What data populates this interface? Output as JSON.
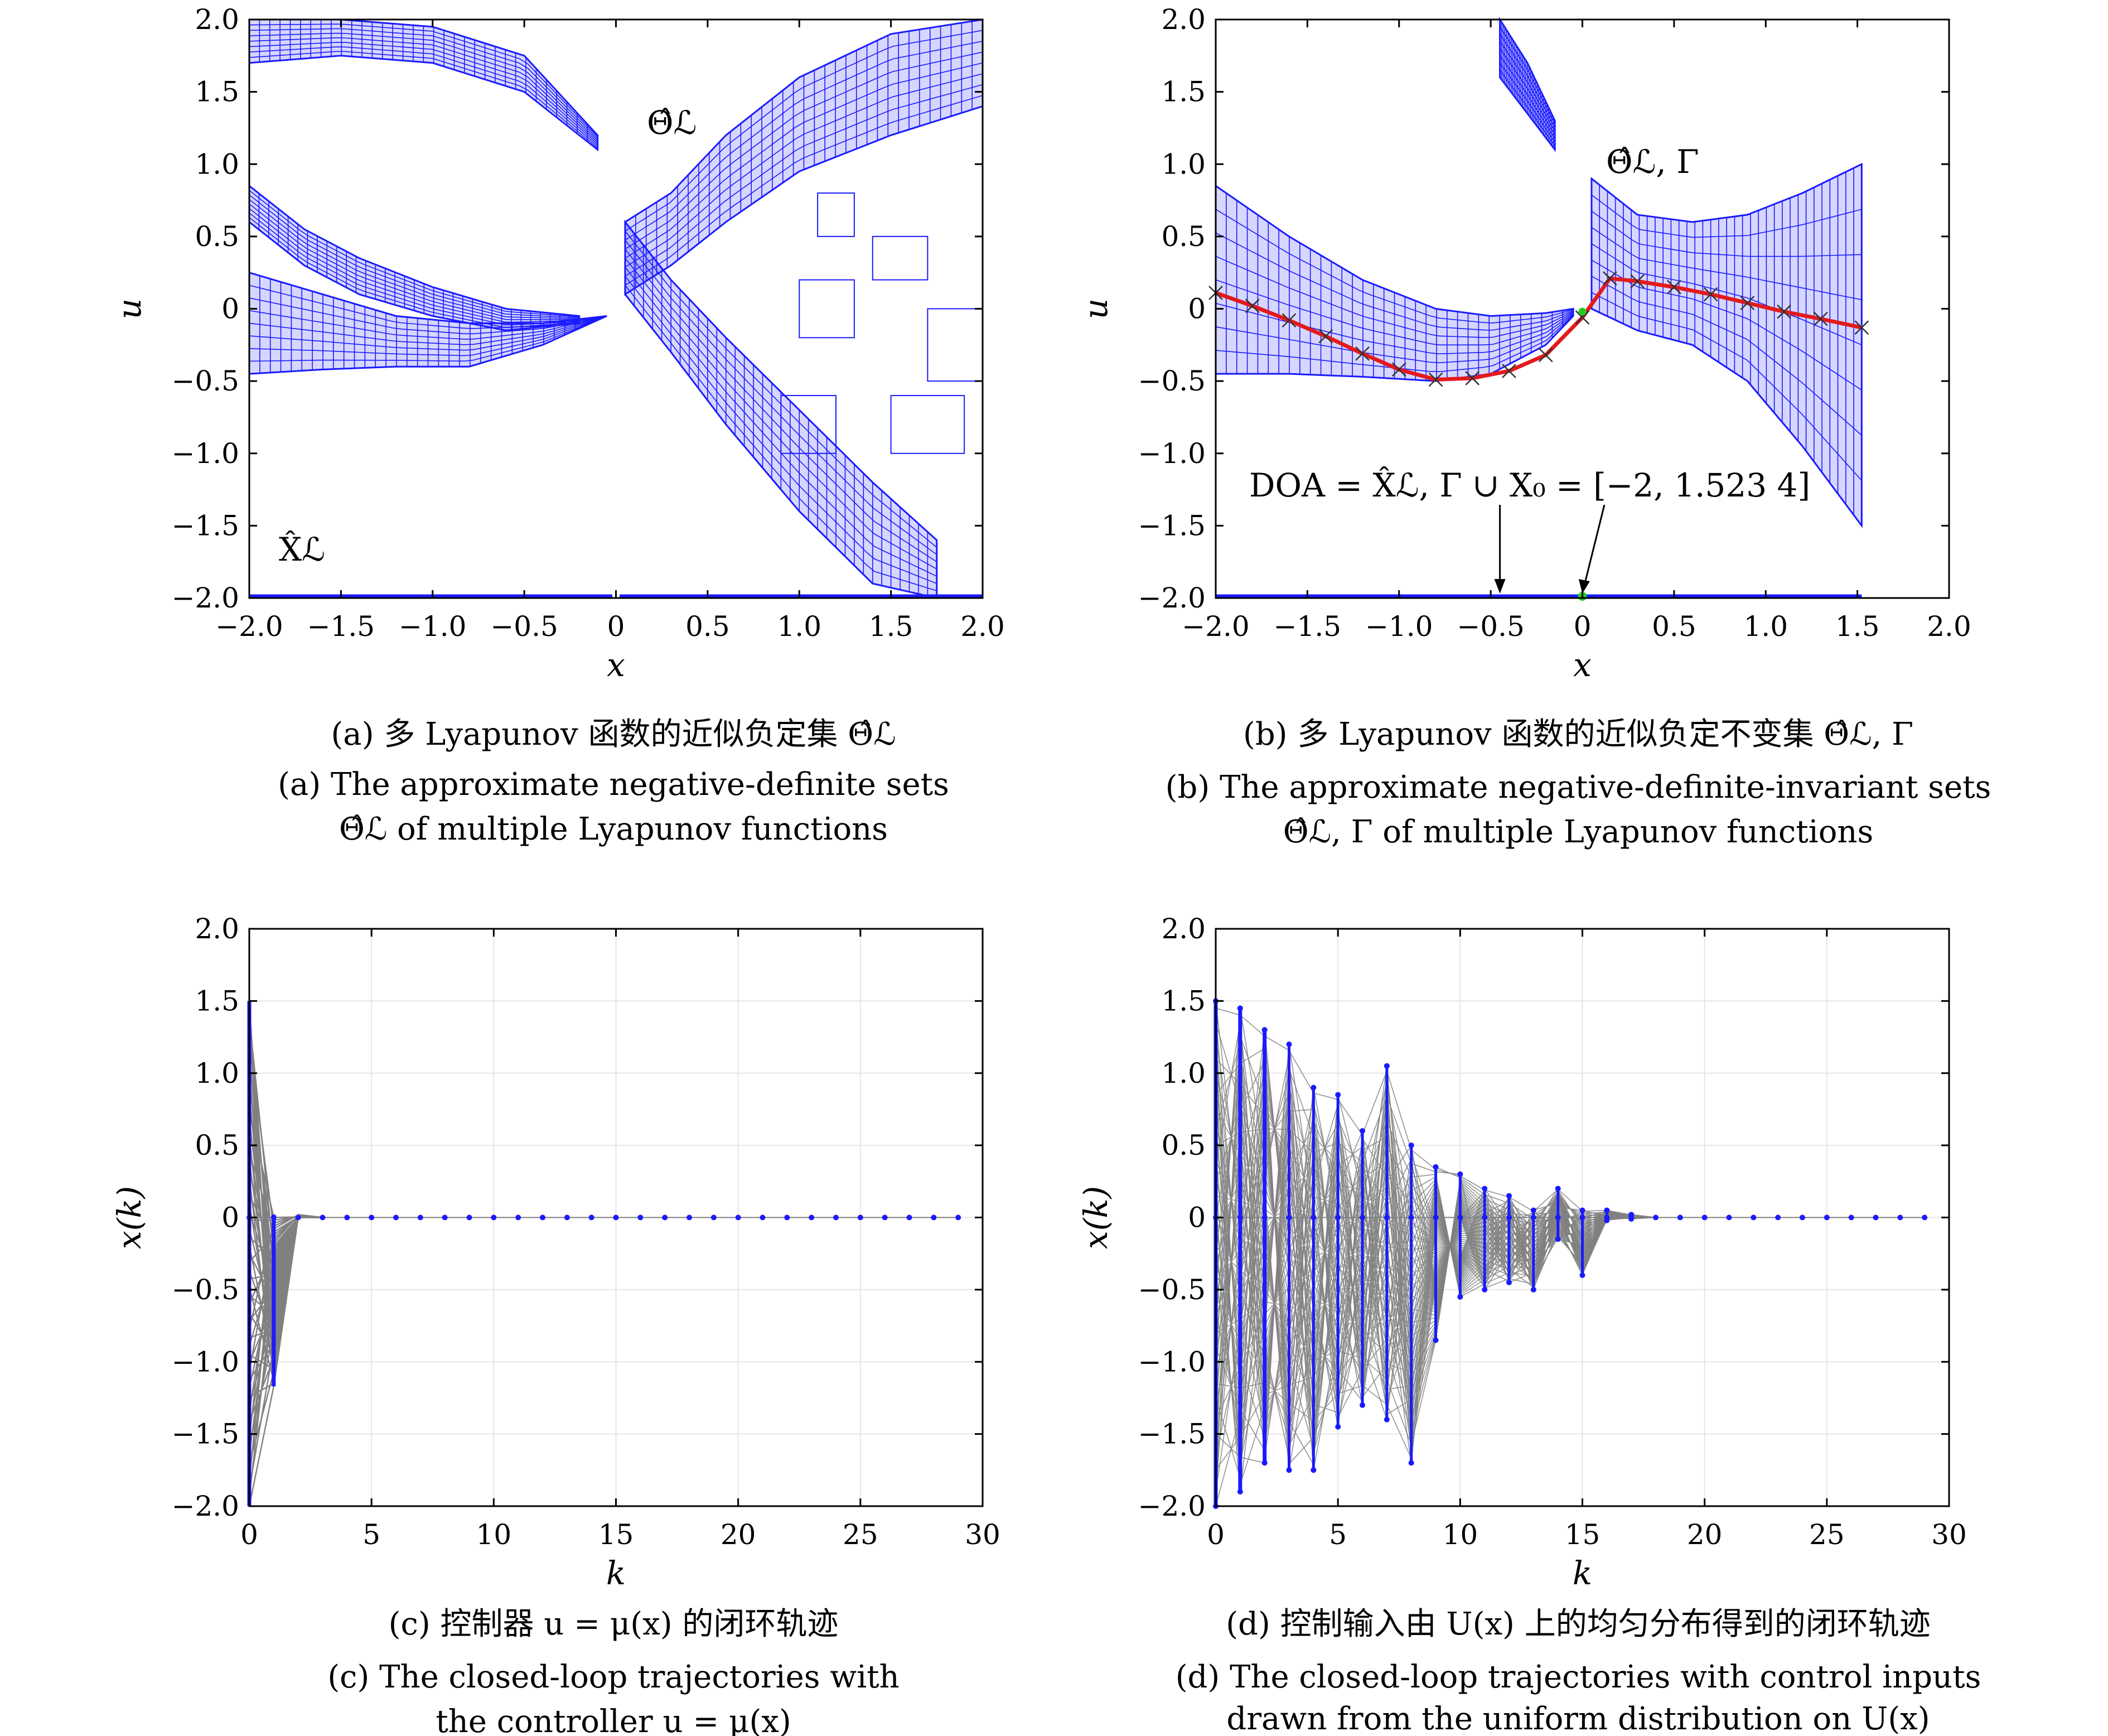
{
  "colors": {
    "blue": "#1a1aff",
    "red": "#e31a1c",
    "gray": "#808080",
    "green": "#22cc22",
    "black": "#000000"
  },
  "captions": {
    "a": {
      "cn": "(a) 多 Lyapunov 函数的近似负定集 Θ̂ℒ",
      "en1": "(a) The approximate negative-definite sets",
      "en2": "Θ̂ℒ of multiple Lyapunov functions"
    },
    "b": {
      "cn": "(b) 多 Lyapunov 函数的近似负定不变集 Θ̂ℒ, Γ",
      "en1": "(b) The approximate negative-definite-invariant sets",
      "en2": "Θ̂ℒ, Γ of multiple Lyapunov functions"
    },
    "c": {
      "cn": "(c) 控制器 u = μ(x) 的闭环轨迹",
      "en1": "(c) The closed-loop trajectories with",
      "en2": "the controller u = μ(x)"
    },
    "d": {
      "cn": "(d) 控制输入由 U(x) 上的均匀分布得到的闭环轨迹",
      "en1": "(d) The closed-loop trajectories with control inputs",
      "en2": "drawn from the uniform distribution on U(x)"
    }
  },
  "annotations": {
    "theta_a": "Θ̂ℒ",
    "x_a": "X̂ℒ",
    "theta_b": "Θ̂ℒ, Γ",
    "doa": "DOA = X̂ℒ, Γ ∪ X₀ = [−2, 1.523 4]"
  },
  "chart_data": [
    {
      "panel": "a",
      "type": "scatter",
      "xlabel": "x",
      "ylabel": "u",
      "xlim": [
        -2,
        2
      ],
      "ylim": [
        -2,
        2
      ],
      "xticks": [
        "−2.0",
        "−1.5",
        "−1.0",
        "−0.5",
        "0",
        "0.5",
        "1.0",
        "1.5",
        "2.0"
      ],
      "xtick_values": [
        -2,
        -1.5,
        -1,
        -0.5,
        0,
        0.5,
        1,
        1.5,
        2
      ],
      "yticks": [
        "2.0",
        "1.5",
        "1.0",
        "0.5",
        "0",
        "−0.5",
        "−1.0",
        "−1.5",
        "−2.0"
      ],
      "ytick_values": [
        2,
        1.5,
        1,
        0.5,
        0,
        -0.5,
        -1,
        -1.5,
        -2
      ],
      "series": [
        {
          "name": "Θ̂ℒ",
          "description_color": "blue"
        },
        {
          "name": "X̂ℒ",
          "x_range": [
            -2,
            2
          ],
          "y": -2
        }
      ],
      "bands": [
        {
          "x": [
            -2,
            -1.6,
            -1.2,
            -0.8,
            -0.4,
            -0.05
          ],
          "y_lower": [
            -0.45,
            -0.42,
            -0.4,
            -0.4,
            -0.25,
            -0.05
          ],
          "y_upper": [
            0.25,
            0.1,
            -0.05,
            -0.1,
            -0.1,
            -0.05
          ]
        },
        {
          "x": [
            -2,
            -1.7,
            -1.4,
            -1.0,
            -0.6,
            -0.2
          ],
          "y_lower": [
            0.6,
            0.3,
            0.1,
            -0.05,
            -0.15,
            -0.1
          ],
          "y_upper": [
            0.85,
            0.55,
            0.35,
            0.15,
            0,
            -0.05
          ]
        },
        {
          "x": [
            -2,
            -1.5,
            -1.0,
            -0.5,
            -0.1
          ],
          "y_lower": [
            1.7,
            1.75,
            1.7,
            1.5,
            1.1
          ],
          "y_upper": [
            2.0,
            2.0,
            1.95,
            1.75,
            1.2
          ]
        },
        {
          "x": [
            0.05,
            0.3,
            0.6,
            1.0,
            1.5,
            2.0
          ],
          "y_lower": [
            0.1,
            0.3,
            0.6,
            0.95,
            1.2,
            1.4
          ],
          "y_upper": [
            0.6,
            0.8,
            1.2,
            1.6,
            1.9,
            2.0
          ]
        },
        {
          "x": [
            0.05,
            0.3,
            0.6,
            1.0,
            1.4,
            1.75
          ],
          "y_lower": [
            0.1,
            -0.3,
            -0.8,
            -1.4,
            -1.9,
            -2.0
          ],
          "y_upper": [
            0.6,
            0.2,
            -0.2,
            -0.7,
            -1.2,
            -1.6
          ]
        }
      ]
    },
    {
      "panel": "b",
      "type": "scatter",
      "xlabel": "x",
      "ylabel": "u",
      "xlim": [
        -2,
        2
      ],
      "ylim": [
        -2,
        2
      ],
      "xticks": [
        "−2.0",
        "−1.5",
        "−1.0",
        "−0.5",
        "0",
        "0.5",
        "1.0",
        "1.5",
        "2.0"
      ],
      "xtick_values": [
        -2,
        -1.5,
        -1,
        -0.5,
        0,
        0.5,
        1,
        1.5,
        2
      ],
      "yticks": [
        "2.0",
        "1.5",
        "1.0",
        "0.5",
        "0",
        "−0.5",
        "−1.0",
        "−1.5",
        "−2.0"
      ],
      "ytick_values": [
        2,
        1.5,
        1,
        0.5,
        0,
        -0.5,
        -1,
        -1.5,
        -2
      ],
      "controller": {
        "x": [
          -2.0,
          -1.8,
          -1.6,
          -1.4,
          -1.2,
          -1.0,
          -0.8,
          -0.6,
          -0.4,
          -0.2,
          0.0,
          0.15,
          0.3,
          0.5,
          0.7,
          0.9,
          1.1,
          1.3,
          1.5234
        ],
        "y": [
          0.11,
          0.02,
          -0.08,
          -0.19,
          -0.31,
          -0.42,
          -0.49,
          -0.48,
          -0.43,
          -0.32,
          -0.06,
          0.21,
          0.19,
          0.15,
          0.1,
          0.04,
          -0.02,
          -0.07,
          -0.13
        ]
      },
      "bands": [
        {
          "x": [
            -2,
            -1.6,
            -1.2,
            -0.8,
            -0.5,
            -0.2,
            -0.05
          ],
          "y_lower": [
            -0.45,
            -0.45,
            -0.47,
            -0.5,
            -0.45,
            -0.25,
            -0.05
          ],
          "y_upper": [
            0.85,
            0.5,
            0.2,
            0,
            -0.05,
            -0.03,
            0
          ]
        },
        {
          "x": [
            -0.45,
            -0.3,
            -0.15
          ],
          "y_lower": [
            1.6,
            1.35,
            1.1
          ],
          "y_upper": [
            2.0,
            1.7,
            1.3
          ]
        },
        {
          "x": [
            0.05,
            0.3,
            0.6,
            0.9,
            1.2,
            1.5234
          ],
          "y_lower": [
            0.0,
            -0.15,
            -0.25,
            -0.5,
            -0.95,
            -1.5
          ],
          "y_upper": [
            0.9,
            0.65,
            0.6,
            0.65,
            0.8,
            1.0
          ]
        }
      ],
      "doa_range": [
        -2,
        1.5234
      ],
      "x0_point": 0
    },
    {
      "panel": "c",
      "type": "line",
      "xlabel": "k",
      "ylabel": "x(k)",
      "xlim": [
        0,
        30
      ],
      "ylim": [
        -2,
        2
      ],
      "xticks": [
        "0",
        "5",
        "10",
        "15",
        "20",
        "25",
        "30"
      ],
      "xtick_values": [
        0,
        5,
        10,
        15,
        20,
        25,
        30
      ],
      "yticks": [
        "2.0",
        "1.5",
        "1.0",
        "0.5",
        "0",
        "−0.5",
        "−1.0",
        "−1.5",
        "−2.0"
      ],
      "ytick_values": [
        2,
        1.5,
        1,
        0.5,
        0,
        -0.5,
        -1,
        -1.5,
        -2
      ],
      "x0_range": [
        -2,
        1.5
      ],
      "k1_range": [
        -1.17,
        0.02
      ],
      "k2_range": [
        0,
        0.02
      ],
      "k_points": [
        0,
        1,
        2,
        3,
        4,
        5,
        6,
        7,
        8,
        9,
        10,
        11,
        12,
        13,
        14,
        15,
        16,
        17,
        18,
        19,
        20,
        21,
        22,
        23,
        24,
        25,
        26,
        27,
        28,
        29
      ]
    },
    {
      "panel": "d",
      "type": "line",
      "xlabel": "k",
      "ylabel": "x(k)",
      "xlim": [
        0,
        30
      ],
      "ylim": [
        -2,
        2
      ],
      "xticks": [
        "0",
        "5",
        "10",
        "15",
        "20",
        "25",
        "30"
      ],
      "xtick_values": [
        0,
        5,
        10,
        15,
        20,
        25,
        30
      ],
      "yticks": [
        "2.0",
        "1.5",
        "1.0",
        "0.5",
        "0",
        "−0.5",
        "−1.0",
        "−1.5",
        "−2.0"
      ],
      "ytick_values": [
        2,
        1.5,
        1,
        0.5,
        0,
        -0.5,
        -1,
        -1.5,
        -2
      ],
      "spread": [
        {
          "k": 0,
          "min": -2.0,
          "max": 1.5
        },
        {
          "k": 1,
          "min": -1.9,
          "max": 1.45
        },
        {
          "k": 2,
          "min": -1.7,
          "max": 1.3
        },
        {
          "k": 3,
          "min": -1.75,
          "max": 1.2
        },
        {
          "k": 4,
          "min": -1.75,
          "max": 0.9
        },
        {
          "k": 5,
          "min": -1.45,
          "max": 0.85
        },
        {
          "k": 6,
          "min": -1.3,
          "max": 0.6
        },
        {
          "k": 7,
          "min": -1.4,
          "max": 1.05
        },
        {
          "k": 8,
          "min": -1.7,
          "max": 0.5
        },
        {
          "k": 9,
          "min": -0.85,
          "max": 0.35
        },
        {
          "k": 10,
          "min": -0.55,
          "max": 0.3
        },
        {
          "k": 11,
          "min": -0.5,
          "max": 0.2
        },
        {
          "k": 12,
          "min": -0.45,
          "max": 0.15
        },
        {
          "k": 13,
          "min": -0.5,
          "max": 0.05
        },
        {
          "k": 14,
          "min": -0.15,
          "max": 0.2
        },
        {
          "k": 15,
          "min": -0.4,
          "max": 0.05
        },
        {
          "k": 16,
          "min": -0.02,
          "max": 0.05
        },
        {
          "k": 17,
          "min": -0.01,
          "max": 0.02
        }
      ],
      "k_points": [
        0,
        1,
        2,
        3,
        4,
        5,
        6,
        7,
        8,
        9,
        10,
        11,
        12,
        13,
        14,
        15,
        16,
        17,
        18,
        19,
        20,
        21,
        22,
        23,
        24,
        25,
        26,
        27,
        28,
        29
      ]
    }
  ]
}
